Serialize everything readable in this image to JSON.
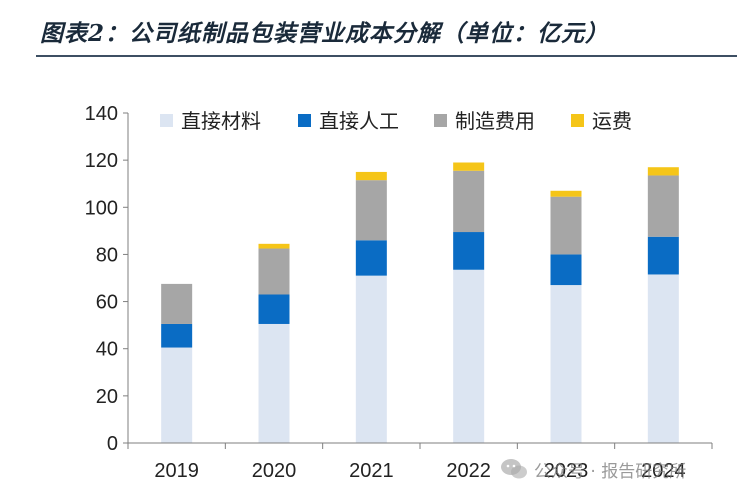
{
  "title": "图表2：公司纸制品包装营业成本分解（单位：亿元）",
  "watermark": {
    "text": "公众号 · 报告研究所"
  },
  "chart_data": {
    "type": "bar",
    "stacked": true,
    "title": "图表2：公司纸制品包装营业成本分解（单位：亿元）",
    "categories": [
      "2019",
      "2020",
      "2021",
      "2022",
      "2023",
      "2024"
    ],
    "series": [
      {
        "name": "直接材料",
        "color": "#dce5f2",
        "values": [
          40.5,
          50.5,
          71,
          73.5,
          67,
          71.5
        ]
      },
      {
        "name": "直接人工",
        "color": "#0a6cc4",
        "values": [
          10,
          12.5,
          15,
          16,
          13,
          16
        ]
      },
      {
        "name": "制造费用",
        "color": "#a6a6a6",
        "values": [
          17,
          19.5,
          25.5,
          26,
          24.5,
          26
        ]
      },
      {
        "name": "运费",
        "color": "#f5c518",
        "values": [
          0,
          2,
          3.5,
          3.5,
          2.5,
          3.5
        ]
      }
    ],
    "ylim": [
      0,
      140
    ],
    "yticks": [
      0,
      20,
      40,
      60,
      80,
      100,
      120,
      140
    ],
    "xlabel": "",
    "ylabel": "",
    "grid": false,
    "legend": "top"
  }
}
